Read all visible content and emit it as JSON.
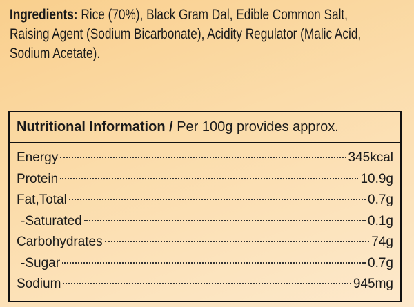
{
  "ingredients": {
    "label": "Ingredients:",
    "lines": [
      "Rice (70%), Black Gram Dal, Edible Common Salt,",
      "Raising Agent (Sodium Bicarbonate), Acidity Regulator (Malic Acid,",
      "Sodium Acetate)."
    ]
  },
  "nutrition": {
    "title": "Nutritional Information /",
    "subtitle": "Per 100g provides approx.",
    "rows": [
      [
        "Energy",
        "345kcal"
      ],
      [
        "Protein",
        "10.9g"
      ],
      [
        "Fat,Total",
        "0.7g"
      ],
      [
        "-Saturated",
        "0.1g"
      ],
      [
        "Carbohydrates",
        "74g"
      ],
      [
        "-Sugar",
        "0.7g"
      ],
      [
        "Sodium",
        "945mg"
      ]
    ]
  }
}
